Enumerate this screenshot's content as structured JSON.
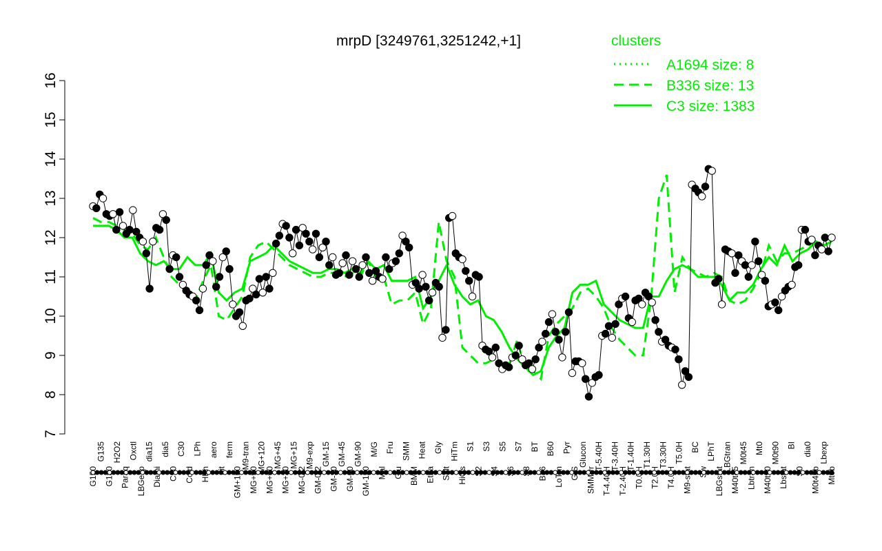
{
  "chart_data": {
    "type": "line",
    "title": "mrpD [3249761,3251242,+1]",
    "xlabel": "",
    "ylabel": "",
    "ylim": [
      7,
      16
    ],
    "yticks": [
      7,
      8,
      9,
      10,
      11,
      12,
      13,
      14,
      15,
      16
    ],
    "grid": false,
    "legend": {
      "title": "clusters",
      "placement": "top-right",
      "color": "#00ee00",
      "entries": [
        {
          "label": "A1694 size: 8",
          "style": "dotted"
        },
        {
          "label": "B336 size: 13",
          "style": "dashed"
        },
        {
          "label": "C3 size: 1383",
          "style": "solid"
        }
      ]
    },
    "x_tick_labels": [
      "G150",
      "G135",
      "G180",
      "H2O2",
      "Paraq",
      "Oxctl",
      "LBGexp",
      "dia15",
      "Diami",
      "dia5",
      "C90",
      "C30",
      "Cold",
      "LPh",
      "HPh",
      "aero",
      "nit",
      "ferm",
      "GM+150",
      "M9-tran",
      "MG+90",
      "MG+120",
      "MG+60",
      "MG+45",
      "MG+30",
      "MG+15",
      "MG-0.2",
      "M9-exp",
      "GM-0.2",
      "GM-15",
      "GM-30",
      "GM-45",
      "GM-60",
      "GM-90",
      "GM-120",
      "M/G",
      "Mal",
      "Fru",
      "Glu",
      "SMM",
      "BMM",
      "Heat",
      "Etha",
      "Gly",
      "Salt",
      "HiTm",
      "HiOs",
      "S1",
      "S2",
      "S3",
      "S4",
      "S5",
      "S6",
      "S7",
      "S8",
      "BT",
      "B36",
      "B60",
      "LoTm",
      "Pyr",
      "G/S",
      "Glucon",
      "SMMPr",
      "T-5.40H",
      "T-4.40H",
      "T-3.40H",
      "T-2.40H",
      "T-1.40H",
      "T0.0H",
      "T1.30H",
      "T2.0H",
      "T3.30H",
      "T4.0H",
      "T5.0H",
      "M9-stat",
      "BC",
      "Sw",
      "LPhT",
      "LBGstat",
      "LBGtran",
      "M40t45",
      "M0t45",
      "Lbtran",
      "Mt0",
      "M40t90",
      "M0t90",
      "Lbstat",
      "BI",
      "S0",
      "dia0",
      "M0t45b",
      "Lbexp",
      "Mt0b"
    ],
    "series": [
      {
        "style": "points",
        "values": [
          12.8,
          12.75,
          13.1,
          13.0,
          12.6,
          12.55,
          12.6,
          12.2,
          12.65,
          12.3,
          12.1,
          12.2,
          12.7,
          12.15,
          12.0,
          11.9,
          11.6,
          10.7,
          11.9,
          12.25,
          12.2,
          12.6,
          12.45,
          11.2,
          11.55,
          11.5,
          11.0,
          10.8,
          10.65,
          10.55,
          10.5,
          10.4,
          10.15,
          10.7,
          11.3,
          11.55,
          11.4,
          10.75,
          11.0,
          11.5,
          11.65,
          11.2,
          10.3,
          10.0,
          10.1,
          9.75,
          10.4,
          10.45,
          10.7,
          10.55,
          10.95,
          10.6,
          11.0,
          10.7,
          11.1,
          11.85,
          12.05,
          12.35,
          12.3,
          12.0,
          11.6,
          12.2,
          11.8,
          12.25,
          12.1,
          11.9,
          11.7,
          12.1,
          11.5,
          11.75,
          11.9,
          11.3,
          11.5,
          11.05,
          11.1,
          11.35,
          11.55,
          11.05,
          11.4,
          11.2,
          11.0,
          11.3,
          11.5,
          11.1,
          10.9,
          11.15,
          11.0,
          10.95,
          11.5,
          11.2,
          11.35,
          11.4,
          11.6,
          12.05,
          11.9,
          11.75,
          10.8,
          10.85,
          10.7,
          11.05,
          10.75,
          10.4,
          10.6,
          10.85,
          10.75,
          9.45,
          9.65,
          12.5,
          12.55,
          11.6,
          11.5,
          11.45,
          11.15,
          10.9,
          10.5,
          11.05,
          11.0,
          9.25,
          9.15,
          9.1,
          8.95,
          9.2,
          8.8,
          8.65,
          8.75,
          8.7,
          8.95,
          9.0,
          9.25,
          8.9,
          8.75,
          8.8,
          8.65,
          8.9,
          9.2,
          9.35,
          9.55,
          9.85,
          10.05,
          9.6,
          9.4,
          8.95,
          9.6,
          10.1,
          8.55,
          8.85,
          8.85,
          8.8,
          8.4,
          7.95,
          8.3,
          8.45,
          8.5,
          9.5,
          9.55,
          9.75,
          9.45,
          9.8,
          10.3,
          10.45,
          10.5,
          9.95,
          9.85,
          10.4,
          10.45,
          10.3,
          10.6,
          10.5,
          10.35,
          9.9,
          9.6,
          9.35,
          9.4,
          9.25,
          9.2,
          9.15,
          8.9,
          8.25,
          8.6,
          8.45,
          13.35,
          13.25,
          13.15,
          13.05,
          13.3,
          13.75,
          13.7,
          10.85,
          10.95,
          10.3,
          11.7,
          11.65,
          11.6,
          11.1,
          11.55,
          11.4,
          11.3,
          11.0,
          11.3,
          11.9,
          11.4,
          11.05,
          10.9,
          10.25,
          10.3,
          10.35,
          10.15,
          10.5,
          10.65,
          10.75,
          10.8,
          11.25,
          11.3,
          12.2,
          12.2,
          11.9,
          11.95,
          11.55,
          11.8,
          11.7,
          12.0,
          11.65,
          12.0
        ]
      },
      {
        "name": "C3 size: 1383",
        "style": "solid",
        "values": [
          12.3,
          12.3,
          12.3,
          12.2,
          12.0,
          12.0,
          11.6,
          11.4,
          11.3,
          11.4,
          11.2,
          11.2,
          11.5,
          11.3,
          11.3,
          11.6,
          10.6,
          10.4,
          10.6,
          10.7,
          11.4,
          11.5,
          11.6,
          11.8,
          11.6,
          11.4,
          11.3,
          11.2,
          11.1,
          11.1,
          11.2,
          11.2,
          11.1,
          11.2,
          11.1,
          11.4,
          11.2,
          11.3,
          10.9,
          10.9,
          10.9,
          11.0,
          10.2,
          10.5,
          10.9,
          11.3,
          10.8,
          10.5,
          10.3,
          10.4,
          10.0,
          9.9,
          9.6,
          9.2,
          8.9,
          8.7,
          8.5,
          8.6,
          9.2,
          9.5,
          9.7,
          10.6,
          10.8,
          10.8,
          10.9,
          10.3,
          10.1,
          9.9,
          9.8,
          9.7,
          9.7,
          10.5,
          10.5,
          10.9,
          11.2,
          11.3,
          11.2,
          11.0,
          11.0,
          11.0,
          10.8,
          10.4,
          10.6,
          10.6,
          10.8,
          11.2,
          11.5,
          11.3,
          11.8,
          11.4,
          11.6,
          11.7,
          11.9,
          11.8,
          11.9
        ]
      },
      {
        "name": "B336 size: 13",
        "style": "dashed",
        "values": [
          12.5,
          12.4,
          12.4,
          12.3,
          12.2,
          12.1,
          11.8,
          11.7,
          12.0,
          11.5,
          11.0,
          10.8,
          10.6,
          10.4,
          10.9,
          11.3,
          10.0,
          9.9,
          10.2,
          10.5,
          11.5,
          11.8,
          11.9,
          11.7,
          11.5,
          11.3,
          11.2,
          11.1,
          11.0,
          11.0,
          11.1,
          11.1,
          11.0,
          11.1,
          11.0,
          11.4,
          11.0,
          11.0,
          10.3,
          10.4,
          10.4,
          10.6,
          9.8,
          10.2,
          12.4,
          11.4,
          11.0,
          9.2,
          9.0,
          8.8,
          8.8,
          8.9,
          8.7,
          8.8,
          9.4,
          8.6,
          8.6,
          8.4,
          9.5,
          9.8,
          10.0,
          10.2,
          10.6,
          10.7,
          10.5,
          10.2,
          9.7,
          9.4,
          9.2,
          9.0,
          9.0,
          10.4,
          13.0,
          13.6,
          10.6,
          11.5,
          11.2,
          11.1,
          11.0,
          11.1,
          11.0,
          10.4,
          10.3,
          10.4,
          10.7,
          11.1,
          11.8,
          11.4,
          11.6,
          11.6,
          11.7,
          11.8,
          11.9,
          11.8,
          11.9
        ]
      }
    ]
  }
}
